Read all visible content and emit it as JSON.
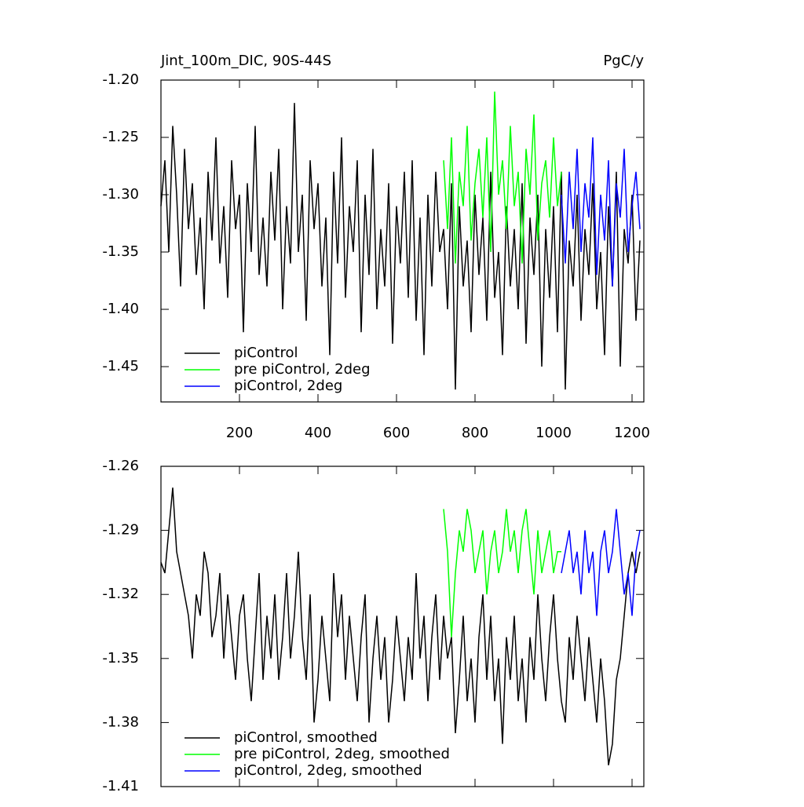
{
  "chart_data": [
    {
      "type": "line",
      "title": "Jint_100m_DIC, 90S-44S",
      "units": "PgC/y",
      "xlim": [
        0,
        1230
      ],
      "xticks": [
        200,
        400,
        600,
        800,
        1000,
        1200
      ],
      "ylim": [
        -1.4808,
        -1.2
      ],
      "yticks": [
        {
          "value": -1.2,
          "label": "-1.20"
        },
        {
          "value": -1.25,
          "label": "-1.25"
        },
        {
          "value": -1.3,
          "label": "-1.30"
        },
        {
          "value": -1.35,
          "label": "-1.35"
        },
        {
          "value": -1.4,
          "label": "-1.40"
        },
        {
          "value": -1.45,
          "label": "-1.45"
        }
      ],
      "legend": "lower left",
      "series": [
        {
          "name": "piControl",
          "color": "#000000",
          "x": [
            0,
            10,
            20,
            30,
            40,
            50,
            60,
            70,
            80,
            90,
            100,
            110,
            120,
            130,
            140,
            150,
            160,
            170,
            180,
            190,
            200,
            210,
            220,
            230,
            240,
            250,
            260,
            270,
            280,
            290,
            300,
            310,
            320,
            330,
            340,
            350,
            360,
            370,
            380,
            390,
            400,
            410,
            420,
            430,
            440,
            450,
            460,
            470,
            480,
            490,
            500,
            510,
            520,
            530,
            540,
            550,
            560,
            570,
            580,
            590,
            600,
            610,
            620,
            630,
            640,
            650,
            660,
            670,
            680,
            690,
            700,
            710,
            720,
            730,
            740,
            750,
            760,
            770,
            780,
            790,
            800,
            810,
            820,
            830,
            840,
            850,
            860,
            870,
            880,
            890,
            900,
            910,
            920,
            930,
            940,
            950,
            960,
            970,
            980,
            990,
            1000,
            1010,
            1020,
            1030,
            1040,
            1050,
            1060,
            1070,
            1080,
            1090,
            1100,
            1110,
            1120,
            1130,
            1140,
            1150,
            1160,
            1170,
            1180,
            1190,
            1200,
            1210,
            1220
          ],
          "values": [
            -1.31,
            -1.27,
            -1.35,
            -1.24,
            -1.3,
            -1.38,
            -1.26,
            -1.33,
            -1.29,
            -1.37,
            -1.32,
            -1.4,
            -1.28,
            -1.34,
            -1.25,
            -1.36,
            -1.31,
            -1.39,
            -1.27,
            -1.33,
            -1.3,
            -1.42,
            -1.29,
            -1.35,
            -1.24,
            -1.37,
            -1.32,
            -1.38,
            -1.28,
            -1.34,
            -1.26,
            -1.4,
            -1.31,
            -1.36,
            -1.22,
            -1.35,
            -1.3,
            -1.41,
            -1.27,
            -1.33,
            -1.29,
            -1.38,
            -1.32,
            -1.44,
            -1.28,
            -1.36,
            -1.25,
            -1.39,
            -1.31,
            -1.35,
            -1.27,
            -1.42,
            -1.3,
            -1.37,
            -1.26,
            -1.4,
            -1.33,
            -1.38,
            -1.29,
            -1.43,
            -1.31,
            -1.36,
            -1.28,
            -1.39,
            -1.27,
            -1.41,
            -1.32,
            -1.44,
            -1.3,
            -1.38,
            -1.28,
            -1.35,
            -1.33,
            -1.4,
            -1.29,
            -1.47,
            -1.31,
            -1.38,
            -1.34,
            -1.42,
            -1.3,
            -1.37,
            -1.32,
            -1.41,
            -1.28,
            -1.39,
            -1.35,
            -1.44,
            -1.31,
            -1.38,
            -1.33,
            -1.4,
            -1.29,
            -1.43,
            -1.32,
            -1.37,
            -1.3,
            -1.45,
            -1.33,
            -1.39,
            -1.31,
            -1.42,
            -1.28,
            -1.47,
            -1.34,
            -1.38,
            -1.3,
            -1.41,
            -1.33,
            -1.37,
            -1.29,
            -1.4,
            -1.35,
            -1.44,
            -1.31,
            -1.38,
            -1.28,
            -1.45,
            -1.33,
            -1.36,
            -1.3,
            -1.41,
            -1.34
          ]
        },
        {
          "name": "pre piControl, 2deg",
          "color": "#00ff00",
          "x": [
            720,
            730,
            740,
            750,
            760,
            770,
            780,
            790,
            800,
            810,
            820,
            830,
            840,
            850,
            860,
            870,
            880,
            890,
            900,
            910,
            920,
            930,
            940,
            950,
            960,
            970,
            980,
            990,
            1000,
            1010,
            1020
          ],
          "values": [
            -1.27,
            -1.33,
            -1.25,
            -1.36,
            -1.28,
            -1.31,
            -1.24,
            -1.34,
            -1.29,
            -1.26,
            -1.32,
            -1.25,
            -1.35,
            -1.21,
            -1.3,
            -1.27,
            -1.33,
            -1.24,
            -1.31,
            -1.28,
            -1.36,
            -1.26,
            -1.3,
            -1.23,
            -1.34,
            -1.29,
            -1.27,
            -1.32,
            -1.25,
            -1.31,
            -1.28
          ]
        },
        {
          "name": "piControl, 2deg",
          "color": "#0000ff",
          "x": [
            1020,
            1030,
            1040,
            1050,
            1060,
            1070,
            1080,
            1090,
            1100,
            1110,
            1120,
            1130,
            1140,
            1150,
            1160,
            1170,
            1180,
            1190,
            1200,
            1210,
            1220
          ],
          "values": [
            -1.3,
            -1.36,
            -1.28,
            -1.33,
            -1.26,
            -1.35,
            -1.29,
            -1.32,
            -1.25,
            -1.37,
            -1.3,
            -1.34,
            -1.27,
            -1.38,
            -1.29,
            -1.32,
            -1.26,
            -1.35,
            -1.31,
            -1.28,
            -1.33
          ]
        }
      ]
    },
    {
      "type": "line",
      "xlim": [
        0,
        1230
      ],
      "xticks": [
        200,
        400,
        600,
        800,
        1000,
        1200
      ],
      "x_tick_labels": false,
      "ylim": [
        -1.41,
        -1.26
      ],
      "yticks": [
        -1.26,
        -1.29,
        -1.32,
        -1.35,
        -1.38,
        -1.41
      ],
      "legend": "lower left",
      "series": [
        {
          "name": "piControl, smoothed",
          "color": "#000000",
          "x": [
            0,
            10,
            20,
            30,
            40,
            50,
            60,
            70,
            80,
            90,
            100,
            110,
            120,
            130,
            140,
            150,
            160,
            170,
            180,
            190,
            200,
            210,
            220,
            230,
            240,
            250,
            260,
            270,
            280,
            290,
            300,
            310,
            320,
            330,
            340,
            350,
            360,
            370,
            380,
            390,
            400,
            410,
            420,
            430,
            440,
            450,
            460,
            470,
            480,
            490,
            500,
            510,
            520,
            530,
            540,
            550,
            560,
            570,
            580,
            590,
            600,
            610,
            620,
            630,
            640,
            650,
            660,
            670,
            680,
            690,
            700,
            710,
            720,
            730,
            740,
            750,
            760,
            770,
            780,
            790,
            800,
            810,
            820,
            830,
            840,
            850,
            860,
            870,
            880,
            890,
            900,
            910,
            920,
            930,
            940,
            950,
            960,
            970,
            980,
            990,
            1000,
            1010,
            1020,
            1030,
            1040,
            1050,
            1060,
            1070,
            1080,
            1090,
            1100,
            1110,
            1120,
            1130,
            1140,
            1150,
            1160,
            1170,
            1180,
            1190,
            1200,
            1210,
            1220
          ],
          "values": [
            -1.305,
            -1.31,
            -1.29,
            -1.27,
            -1.3,
            -1.31,
            -1.32,
            -1.33,
            -1.35,
            -1.32,
            -1.33,
            -1.3,
            -1.31,
            -1.34,
            -1.33,
            -1.31,
            -1.35,
            -1.32,
            -1.34,
            -1.36,
            -1.33,
            -1.32,
            -1.35,
            -1.37,
            -1.34,
            -1.31,
            -1.36,
            -1.33,
            -1.35,
            -1.32,
            -1.36,
            -1.34,
            -1.31,
            -1.35,
            -1.33,
            -1.3,
            -1.34,
            -1.36,
            -1.32,
            -1.38,
            -1.36,
            -1.33,
            -1.35,
            -1.37,
            -1.31,
            -1.34,
            -1.32,
            -1.36,
            -1.33,
            -1.35,
            -1.37,
            -1.34,
            -1.32,
            -1.38,
            -1.35,
            -1.33,
            -1.36,
            -1.34,
            -1.38,
            -1.36,
            -1.33,
            -1.35,
            -1.37,
            -1.34,
            -1.36,
            -1.31,
            -1.35,
            -1.33,
            -1.37,
            -1.34,
            -1.32,
            -1.36,
            -1.33,
            -1.35,
            -1.34,
            -1.385,
            -1.36,
            -1.33,
            -1.37,
            -1.35,
            -1.38,
            -1.34,
            -1.32,
            -1.36,
            -1.33,
            -1.37,
            -1.35,
            -1.39,
            -1.34,
            -1.36,
            -1.33,
            -1.37,
            -1.35,
            -1.38,
            -1.34,
            -1.36,
            -1.32,
            -1.35,
            -1.37,
            -1.34,
            -1.32,
            -1.35,
            -1.37,
            -1.38,
            -1.34,
            -1.36,
            -1.33,
            -1.35,
            -1.37,
            -1.34,
            -1.36,
            -1.38,
            -1.35,
            -1.37,
            -1.4,
            -1.39,
            -1.36,
            -1.35,
            -1.33,
            -1.31,
            -1.3,
            -1.31,
            -1.3
          ]
        },
        {
          "name": "pre piControl, 2deg, smoothed",
          "color": "#00ff00",
          "x": [
            720,
            730,
            740,
            750,
            760,
            770,
            780,
            790,
            800,
            810,
            820,
            830,
            840,
            850,
            860,
            870,
            880,
            890,
            900,
            910,
            920,
            930,
            940,
            950,
            960,
            970,
            980,
            990,
            1000,
            1010,
            1020
          ],
          "values": [
            -1.28,
            -1.3,
            -1.34,
            -1.31,
            -1.29,
            -1.3,
            -1.28,
            -1.29,
            -1.31,
            -1.3,
            -1.29,
            -1.32,
            -1.3,
            -1.29,
            -1.31,
            -1.3,
            -1.28,
            -1.3,
            -1.29,
            -1.31,
            -1.29,
            -1.28,
            -1.3,
            -1.32,
            -1.29,
            -1.31,
            -1.3,
            -1.29,
            -1.31,
            -1.3,
            -1.3
          ]
        },
        {
          "name": "piControl, 2deg, smoothed",
          "color": "#0000ff",
          "x": [
            1020,
            1030,
            1040,
            1050,
            1060,
            1070,
            1080,
            1090,
            1100,
            1110,
            1120,
            1130,
            1140,
            1150,
            1160,
            1170,
            1180,
            1190,
            1200,
            1210,
            1220
          ],
          "values": [
            -1.31,
            -1.3,
            -1.29,
            -1.31,
            -1.3,
            -1.32,
            -1.29,
            -1.31,
            -1.3,
            -1.33,
            -1.3,
            -1.29,
            -1.31,
            -1.3,
            -1.28,
            -1.3,
            -1.32,
            -1.31,
            -1.33,
            -1.3,
            -1.29
          ]
        }
      ]
    }
  ]
}
